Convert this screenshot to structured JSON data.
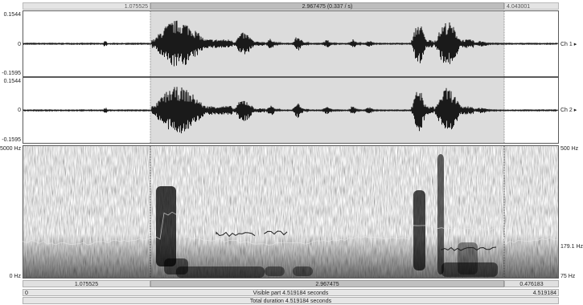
{
  "top_bar": {
    "left_time": "1.075525",
    "selection_duration": "2.967475 (0.337 / s)",
    "right_time": "4.043001"
  },
  "channels": [
    {
      "label": "Ch 1",
      "y_max": "0.1544",
      "y_zero": "0",
      "y_min": "-0.1595"
    },
    {
      "label": "Ch 2",
      "y_max": "0.1544",
      "y_zero": "0",
      "y_min": "-0.1595"
    }
  ],
  "spectrogram": {
    "freq_top": "5000 Hz",
    "freq_bottom": "0 Hz",
    "pitch_top": "500 Hz",
    "pitch_mid": "179.1 Hz",
    "pitch_bottom": "75 Hz"
  },
  "bottom_bar": {
    "left_segment": "1.075525",
    "selection_segment": "2.967475",
    "right_segment": "0.476183",
    "visible_left": "0",
    "visible_label": "Visible part 4.519184 seconds",
    "visible_right": "4.519184",
    "total_label": "Total duration 4.519184 seconds"
  },
  "colors": {
    "selection_background": "#dcdcdc",
    "waveform": "#1a1a1a",
    "pitch_contour": "#2a2a2a"
  }
}
